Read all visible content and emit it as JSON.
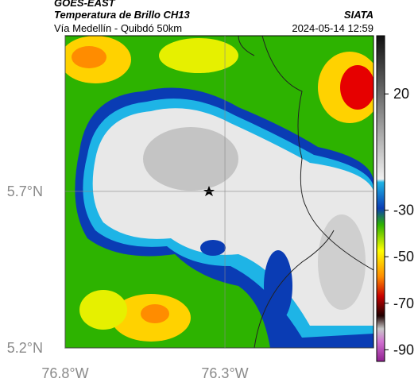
{
  "header": {
    "satellite": "GOES-EAST",
    "title": "Temperatura de Brillo CH13",
    "subtitle": "Vía Medellín - Quibdó 50km",
    "source": "SIATA",
    "datetime": "2024-05-14 12:59"
  },
  "map": {
    "xlim": [
      -76.8,
      -75.835
    ],
    "ylim": [
      5.2,
      6.197
    ],
    "xticks": [
      {
        "value": -76.8,
        "label": "76.8°W"
      },
      {
        "value": -76.3,
        "label": "76.3°W"
      }
    ],
    "yticks": [
      {
        "value": 5.7,
        "label": "5.7°N"
      },
      {
        "value": 5.2,
        "label": "5.2°N"
      }
    ]
  },
  "colorbar": {
    "lim": [
      -95,
      45
    ],
    "ticks": [
      20,
      -30,
      -50,
      -70,
      -90
    ]
  }
}
